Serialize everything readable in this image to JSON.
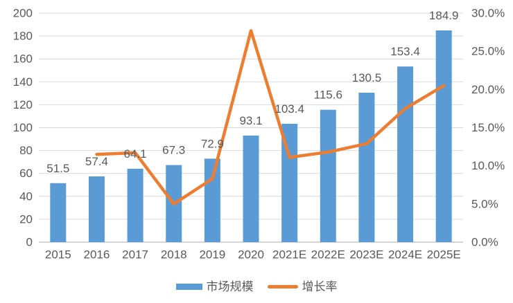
{
  "colors": {
    "bar": "#5B9BD5",
    "line": "#ED7D31",
    "grid": "#D9D9D9",
    "axis_line": "#C9C9C9",
    "tick_text": "#595959",
    "data_label_text": "#595959",
    "background": "#FFFFFF"
  },
  "chart_data": {
    "type": "bar",
    "title": "",
    "xlabel": "",
    "ylabel": "",
    "categories": [
      "2015",
      "2016",
      "2017",
      "2018",
      "2019",
      "2020",
      "2021E",
      "2022E",
      "2023E",
      "2024E",
      "2025E"
    ],
    "series": [
      {
        "name": "市场规模",
        "type": "bar",
        "axis": "left",
        "color": "#5B9BD5",
        "values": [
          51.5,
          57.4,
          64.1,
          67.3,
          72.9,
          93.1,
          103.4,
          115.6,
          130.5,
          153.4,
          184.9
        ],
        "data_labels": [
          "51.5",
          "57.4",
          "64.1",
          "67.3",
          "72.9",
          "93.1",
          "103.4",
          "115.6",
          "130.5",
          "153.4",
          "184.9"
        ]
      },
      {
        "name": "增长率",
        "type": "line",
        "axis": "right",
        "color": "#ED7D31",
        "values": [
          null,
          11.5,
          11.7,
          5.0,
          8.3,
          27.7,
          11.1,
          11.8,
          12.9,
          17.5,
          20.5
        ]
      }
    ],
    "left_axis": {
      "min": 0,
      "max": 200,
      "step": 20,
      "tick_labels": [
        "0",
        "20",
        "40",
        "60",
        "80",
        "100",
        "120",
        "140",
        "160",
        "180",
        "200"
      ]
    },
    "right_axis": {
      "min": 0,
      "max": 30,
      "step": 5,
      "tick_labels": [
        "0.0%",
        "5.0%",
        "10.0%",
        "15.0%",
        "20.0%",
        "25.0%",
        "30.0%"
      ]
    },
    "grid": true,
    "legend_position": "bottom"
  }
}
